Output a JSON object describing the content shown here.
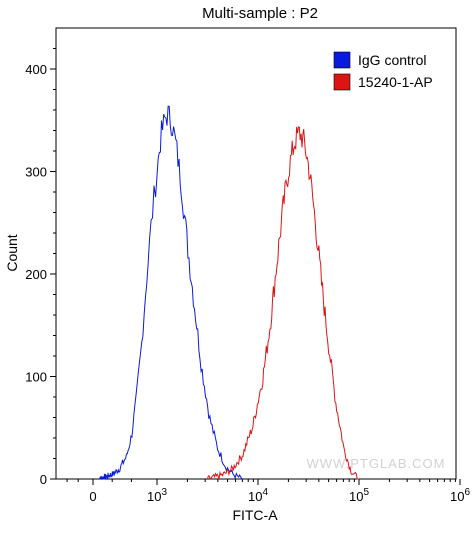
{
  "chart_data": {
    "type": "line",
    "title": "Multi-sample : P2",
    "xlabel": "FITC-A",
    "ylabel": "Count",
    "x_scale": "biexponential",
    "ylim": [
      0,
      440
    ],
    "y_ticks": [
      0,
      100,
      200,
      300,
      400
    ],
    "x_ticks": [
      {
        "value": 0,
        "label": "0"
      },
      {
        "value": 1000,
        "label": "10",
        "exp": "3"
      },
      {
        "value": 10000,
        "label": "10",
        "exp": "4"
      },
      {
        "value": 100000,
        "label": "10",
        "exp": "5"
      },
      {
        "value": 1000000,
        "label": "10",
        "exp": "6"
      }
    ],
    "legend_position": "top-right",
    "watermark": "WWW.PTGLAB.COM",
    "series": [
      {
        "name": "IgG control",
        "color": "#0a1adc",
        "points": [
          [
            2.0,
            0
          ],
          [
            2.3,
            2
          ],
          [
            2.5,
            5
          ],
          [
            2.62,
            10
          ],
          [
            2.72,
            22
          ],
          [
            2.78,
            42
          ],
          [
            2.83,
            78
          ],
          [
            2.88,
            130
          ],
          [
            2.92,
            190
          ],
          [
            2.96,
            250
          ],
          [
            3.0,
            300
          ],
          [
            3.04,
            335
          ],
          [
            3.08,
            352
          ],
          [
            3.11,
            356
          ],
          [
            3.15,
            346
          ],
          [
            3.19,
            325
          ],
          [
            3.24,
            288
          ],
          [
            3.3,
            230
          ],
          [
            3.37,
            170
          ],
          [
            3.44,
            110
          ],
          [
            3.52,
            60
          ],
          [
            3.6,
            30
          ],
          [
            3.68,
            12
          ],
          [
            3.76,
            4
          ],
          [
            3.85,
            0
          ]
        ]
      },
      {
        "name": "15240-1-AP",
        "color": "#dc1414",
        "points": [
          [
            3.5,
            0
          ],
          [
            3.65,
            4
          ],
          [
            3.75,
            10
          ],
          [
            3.85,
            24
          ],
          [
            3.95,
            52
          ],
          [
            4.05,
            100
          ],
          [
            4.12,
            150
          ],
          [
            4.18,
            205
          ],
          [
            4.24,
            258
          ],
          [
            4.3,
            300
          ],
          [
            4.36,
            328
          ],
          [
            4.41,
            338
          ],
          [
            4.46,
            328
          ],
          [
            4.51,
            300
          ],
          [
            4.57,
            250
          ],
          [
            4.63,
            190
          ],
          [
            4.7,
            130
          ],
          [
            4.77,
            75
          ],
          [
            4.85,
            30
          ],
          [
            4.92,
            8
          ],
          [
            5.0,
            0
          ]
        ]
      }
    ]
  }
}
